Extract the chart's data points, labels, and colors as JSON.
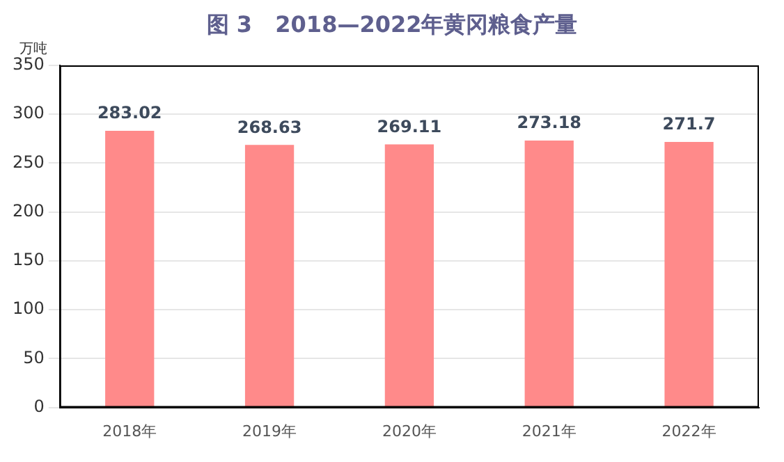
{
  "chart_data": {
    "type": "bar",
    "title": "图 3   2018—2022年黄冈粮食产量",
    "ylabel": "万吨",
    "categories": [
      "2018年",
      "2019年",
      "2020年",
      "2021年",
      "2022年"
    ],
    "values": [
      283.02,
      268.63,
      269.11,
      273.18,
      271.7
    ],
    "color": "#ff8a8a",
    "ylim": [
      0,
      350
    ],
    "yticks": [
      0,
      50,
      100,
      150,
      200,
      250,
      300,
      350
    ],
    "grid": "y",
    "data_labels": true
  }
}
